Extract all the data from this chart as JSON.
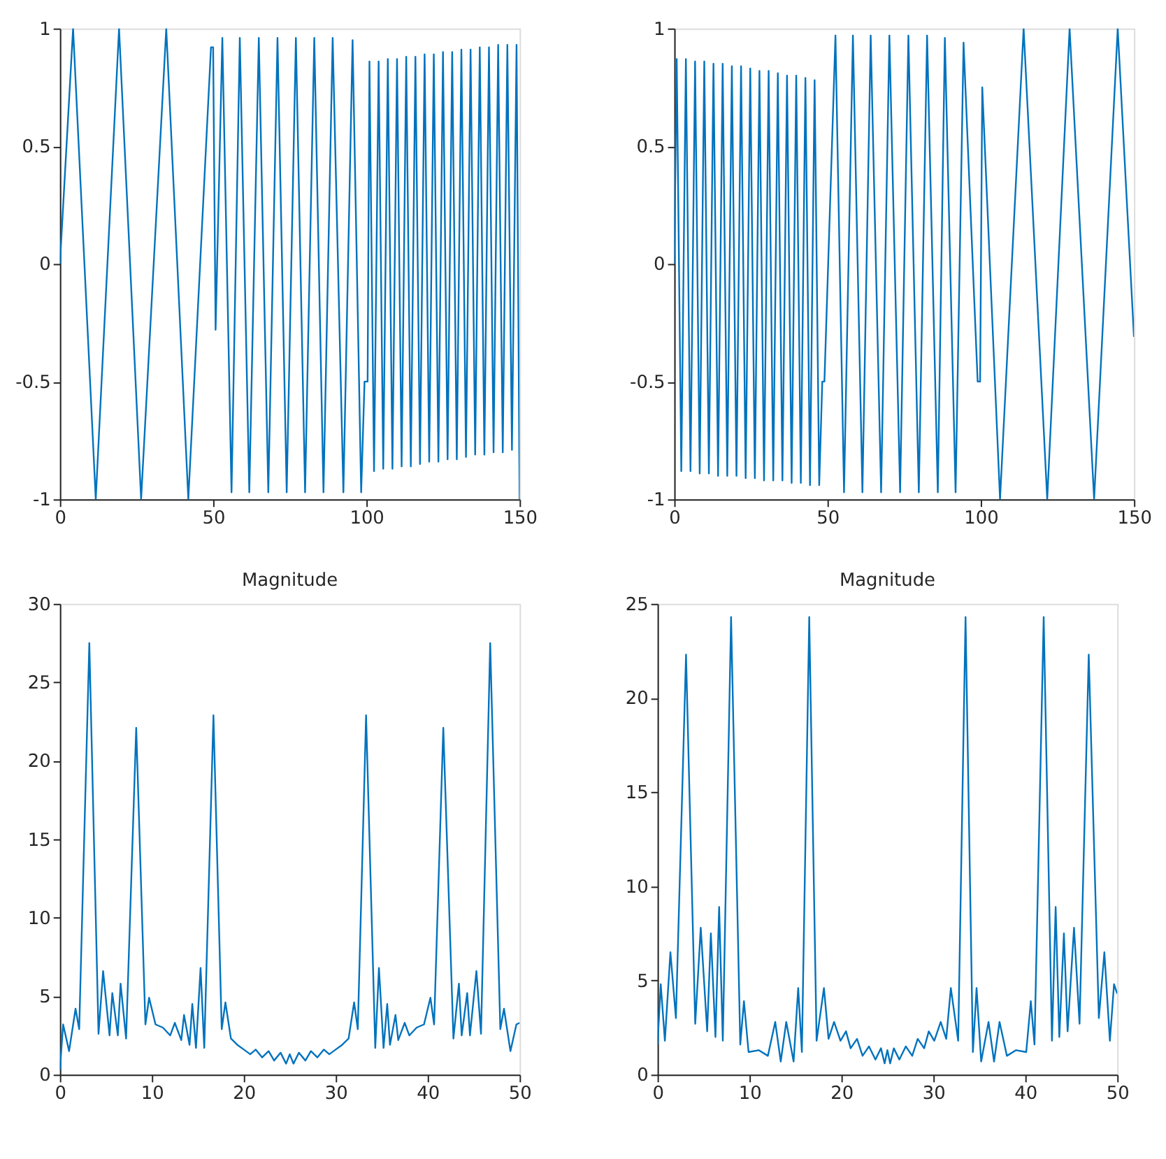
{
  "chart_data": [
    {
      "type": "line",
      "color": "#0072bd",
      "line_style": "solid",
      "grid": false,
      "xlim": [
        0,
        150
      ],
      "xticks": [
        0,
        50,
        100,
        150
      ],
      "ylim": [
        -1,
        1
      ],
      "yticks": [
        -1,
        -0.5,
        0,
        0.5,
        1
      ],
      "x": [
        0,
        4.3,
        11.7,
        19.3,
        26.5,
        34.7,
        41.9,
        49.3,
        50,
        50.8,
        53,
        56,
        58.7,
        61.8,
        64.9,
        68,
        71,
        74,
        77,
        80,
        83,
        86,
        89,
        92.5,
        95.5,
        98.3,
        99.4,
        100.4,
        101,
        102.5,
        104,
        105.5,
        107,
        108.5,
        110,
        111.5,
        113,
        114.5,
        116,
        117.5,
        119,
        120.5,
        122,
        123.5,
        125,
        126.5,
        128,
        129.5,
        131,
        132.5,
        134,
        135.5,
        137,
        138.5,
        140,
        141.5,
        143,
        144.5,
        146,
        147.5,
        149,
        150
      ],
      "values": [
        0,
        1,
        -1,
        1,
        -1,
        1,
        -1,
        0.92,
        0.92,
        -0.28,
        0.96,
        -0.97,
        0.96,
        -0.97,
        0.96,
        -0.97,
        0.96,
        -0.97,
        0.96,
        -0.97,
        0.96,
        -0.97,
        0.96,
        -0.97,
        0.95,
        -0.97,
        -0.5,
        -0.5,
        0.86,
        -0.88,
        0.86,
        -0.87,
        0.87,
        -0.87,
        0.87,
        -0.86,
        0.88,
        -0.86,
        0.88,
        -0.85,
        0.89,
        -0.84,
        0.89,
        -0.84,
        0.9,
        -0.83,
        0.9,
        -0.83,
        0.91,
        -0.82,
        0.91,
        -0.81,
        0.92,
        -0.81,
        0.92,
        -0.8,
        0.93,
        -0.8,
        0.93,
        -0.79,
        0.93,
        -1
      ]
    },
    {
      "type": "line",
      "color": "#0072bd",
      "line_style": "solid",
      "grid": false,
      "xlim": [
        0,
        150
      ],
      "xticks": [
        0,
        50,
        100,
        150
      ],
      "ylim": [
        -1,
        1
      ],
      "yticks": [
        -1,
        -0.5,
        0,
        0.5,
        1
      ],
      "x": [
        0,
        0.8,
        2.3,
        3.8,
        5.3,
        6.8,
        8.3,
        9.8,
        11.3,
        12.8,
        14.3,
        15.8,
        17.3,
        18.8,
        20.3,
        21.8,
        23.3,
        24.8,
        26.3,
        27.8,
        29.3,
        30.8,
        32.3,
        33.8,
        35.3,
        36.8,
        38.3,
        39.8,
        41.3,
        42.8,
        44.3,
        45.8,
        47.3,
        48.3,
        49,
        52.6,
        55.4,
        58.3,
        61.4,
        64.1,
        67.5,
        70.2,
        73.7,
        76.4,
        79.8,
        82.5,
        86,
        88.3,
        91.8,
        94.4,
        99,
        99.8,
        100.5,
        106.3,
        114,
        121.7,
        129,
        137,
        144.7,
        150
      ],
      "values": [
        0,
        0.87,
        -0.88,
        0.87,
        -0.88,
        0.86,
        -0.89,
        0.86,
        -0.89,
        0.85,
        -0.9,
        0.85,
        -0.9,
        0.84,
        -0.9,
        0.84,
        -0.91,
        0.83,
        -0.91,
        0.82,
        -0.92,
        0.82,
        -0.92,
        0.81,
        -0.92,
        0.8,
        -0.93,
        0.8,
        -0.93,
        0.79,
        -0.94,
        0.78,
        -0.94,
        -0.5,
        -0.5,
        0.97,
        -0.97,
        0.97,
        -0.97,
        0.97,
        -0.97,
        0.97,
        -0.97,
        0.97,
        -0.97,
        0.97,
        -0.97,
        0.96,
        -0.97,
        0.94,
        -0.5,
        -0.5,
        0.75,
        -1,
        1,
        -1,
        1,
        -1,
        1,
        -0.31
      ]
    },
    {
      "type": "line",
      "title": "Magnitude",
      "color": "#0072bd",
      "line_style": "solid",
      "grid": false,
      "xlim": [
        0,
        50
      ],
      "xticks": [
        0,
        10,
        20,
        30,
        40,
        50
      ],
      "ylim": [
        0,
        30
      ],
      "yticks": [
        0,
        5,
        10,
        15,
        20,
        25,
        30
      ],
      "x": [
        0,
        0.35,
        1,
        1.7,
        2.1,
        3.2,
        4.2,
        4.7,
        5.4,
        5.7,
        6.3,
        6.6,
        7.2,
        8.3,
        9.3,
        9.7,
        10.4,
        11.2,
        12,
        12.5,
        13.2,
        13.5,
        14.1,
        14.4,
        14.8,
        15.3,
        15.7,
        16.7,
        17.6,
        18,
        18.6,
        19.3,
        20,
        20.7,
        21.3,
        22,
        22.7,
        23.3,
        24,
        24.6,
        25,
        25.4,
        26,
        26.7,
        27.3,
        28,
        28.7,
        29.3,
        30,
        30.7,
        31.4,
        32,
        32.4,
        33.3,
        34.3,
        34.7,
        35.2,
        35.6,
        35.9,
        36.5,
        36.8,
        37.5,
        38,
        38.8,
        39.6,
        40.3,
        40.7,
        41.7,
        42.8,
        43.4,
        43.7,
        44.3,
        44.6,
        45.3,
        45.8,
        46.8,
        47.9,
        48.3,
        49,
        49.65,
        50
      ],
      "values": [
        0.3,
        3.2,
        1.5,
        4.2,
        2.9,
        27.5,
        2.6,
        6.6,
        2.5,
        5.2,
        2.5,
        5.8,
        2.3,
        22.1,
        3.2,
        4.9,
        3.2,
        3.0,
        2.5,
        3.3,
        2.2,
        3.8,
        1.9,
        4.5,
        1.7,
        6.8,
        1.7,
        22.9,
        2.9,
        4.6,
        2.3,
        1.9,
        1.6,
        1.3,
        1.6,
        1.1,
        1.5,
        0.9,
        1.4,
        0.7,
        1.3,
        0.7,
        1.4,
        0.9,
        1.5,
        1.1,
        1.6,
        1.3,
        1.6,
        1.9,
        2.3,
        4.6,
        2.9,
        22.9,
        1.7,
        6.8,
        1.7,
        4.5,
        1.9,
        3.8,
        2.2,
        3.3,
        2.5,
        3.0,
        3.2,
        4.9,
        3.2,
        22.1,
        2.3,
        5.8,
        2.5,
        5.2,
        2.5,
        6.6,
        2.6,
        27.5,
        2.9,
        4.2,
        1.5,
        3.2,
        3.3
      ]
    },
    {
      "type": "line",
      "title": "Magnitude",
      "color": "#0072bd",
      "line_style": "solid",
      "grid": false,
      "xlim": [
        0,
        50
      ],
      "xticks": [
        0,
        10,
        20,
        30,
        40,
        50
      ],
      "ylim": [
        0,
        25
      ],
      "yticks": [
        0,
        5,
        10,
        15,
        20,
        25
      ],
      "x": [
        0,
        0.35,
        0.8,
        1.4,
        2,
        3.1,
        4.1,
        4.7,
        5.4,
        5.8,
        6.3,
        6.7,
        7.1,
        8,
        9,
        9.4,
        9.9,
        11,
        12,
        12.8,
        13.4,
        14,
        14.8,
        15.3,
        15.7,
        16.5,
        17.3,
        18.1,
        18.6,
        19.2,
        19.9,
        20.5,
        21,
        21.7,
        22.3,
        23,
        23.7,
        24.3,
        24.7,
        25,
        25.3,
        25.7,
        26.3,
        27,
        27.7,
        28.3,
        29,
        29.5,
        30.1,
        30.8,
        31.4,
        31.9,
        32.7,
        33.5,
        34.3,
        34.7,
        35.2,
        36,
        36.6,
        37.2,
        38,
        39,
        40.1,
        40.6,
        41,
        42,
        42.9,
        43.3,
        43.7,
        44.2,
        44.6,
        45.3,
        45.9,
        46.9,
        48,
        48.6,
        49.2,
        49.65,
        50
      ],
      "values": [
        1.6,
        4.8,
        1.8,
        6.5,
        3.0,
        22.3,
        2.7,
        7.8,
        2.3,
        7.5,
        2.0,
        8.9,
        1.8,
        24.3,
        1.6,
        3.9,
        1.2,
        1.3,
        1.0,
        2.8,
        0.7,
        2.8,
        0.7,
        4.6,
        1.2,
        24.3,
        1.8,
        4.6,
        1.9,
        2.8,
        1.8,
        2.3,
        1.4,
        1.9,
        1.0,
        1.5,
        0.8,
        1.4,
        0.6,
        1.3,
        0.6,
        1.4,
        0.8,
        1.5,
        1.0,
        1.9,
        1.4,
        2.3,
        1.8,
        2.8,
        1.9,
        4.6,
        1.8,
        24.3,
        1.2,
        4.6,
        0.7,
        2.8,
        0.7,
        2.8,
        1.0,
        1.3,
        1.2,
        3.9,
        1.6,
        24.3,
        1.8,
        8.9,
        2.0,
        7.5,
        2.3,
        7.8,
        2.7,
        22.3,
        3.0,
        6.5,
        1.8,
        4.8,
        4.3
      ]
    }
  ]
}
